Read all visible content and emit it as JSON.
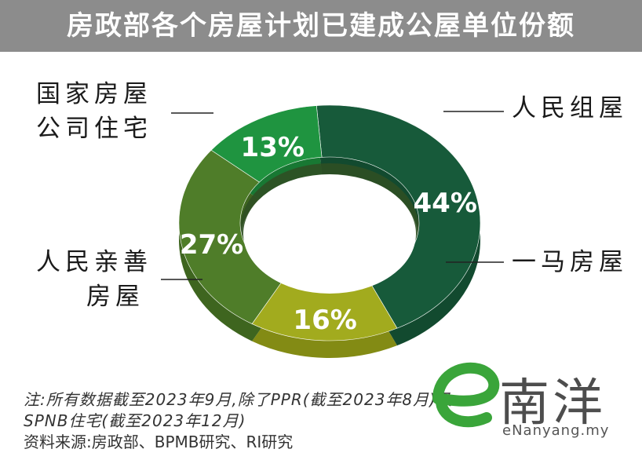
{
  "title": "房政部各个房屋计划已建成公屋单位份额",
  "chart_data": {
    "type": "pie",
    "style": "donut",
    "slices": [
      {
        "label": "人民组屋",
        "value": 44,
        "display": "44%",
        "color": "#175a3a",
        "side_color": "#124a2f"
      },
      {
        "label": "一马房屋",
        "value": 16,
        "display": "16%",
        "color": "#a2ab1e",
        "side_color": "#838b14"
      },
      {
        "label": "人民亲善房屋",
        "value": 27,
        "display": "27%",
        "color": "#4f7d29",
        "side_color": "#3e651f"
      },
      {
        "label": "国家房屋公司住宅",
        "value": 13,
        "display": "13%",
        "color": "#1f9440",
        "side_color": "#187833"
      }
    ]
  },
  "labels": {
    "rumah_rakyat": "人民组屋",
    "rumah_1m": "一马房屋",
    "pr1ma_line1": "人民亲善",
    "pr1ma_line2": "房屋",
    "spnb_line1": "国家房屋",
    "spnb_line2": "公司住宅"
  },
  "notes": {
    "line1": "注:所有数据截至2023年9月,除了PPR(截至2023年8月)及",
    "line2": "SPNB住宅(截至2023年12月)",
    "source": "资料来源:房政部、BPMB研究、RI研究"
  },
  "logo": {
    "letter": "e",
    "chinese": "南洋",
    "url": "eNanyang.my",
    "color": "#3aa53a"
  }
}
